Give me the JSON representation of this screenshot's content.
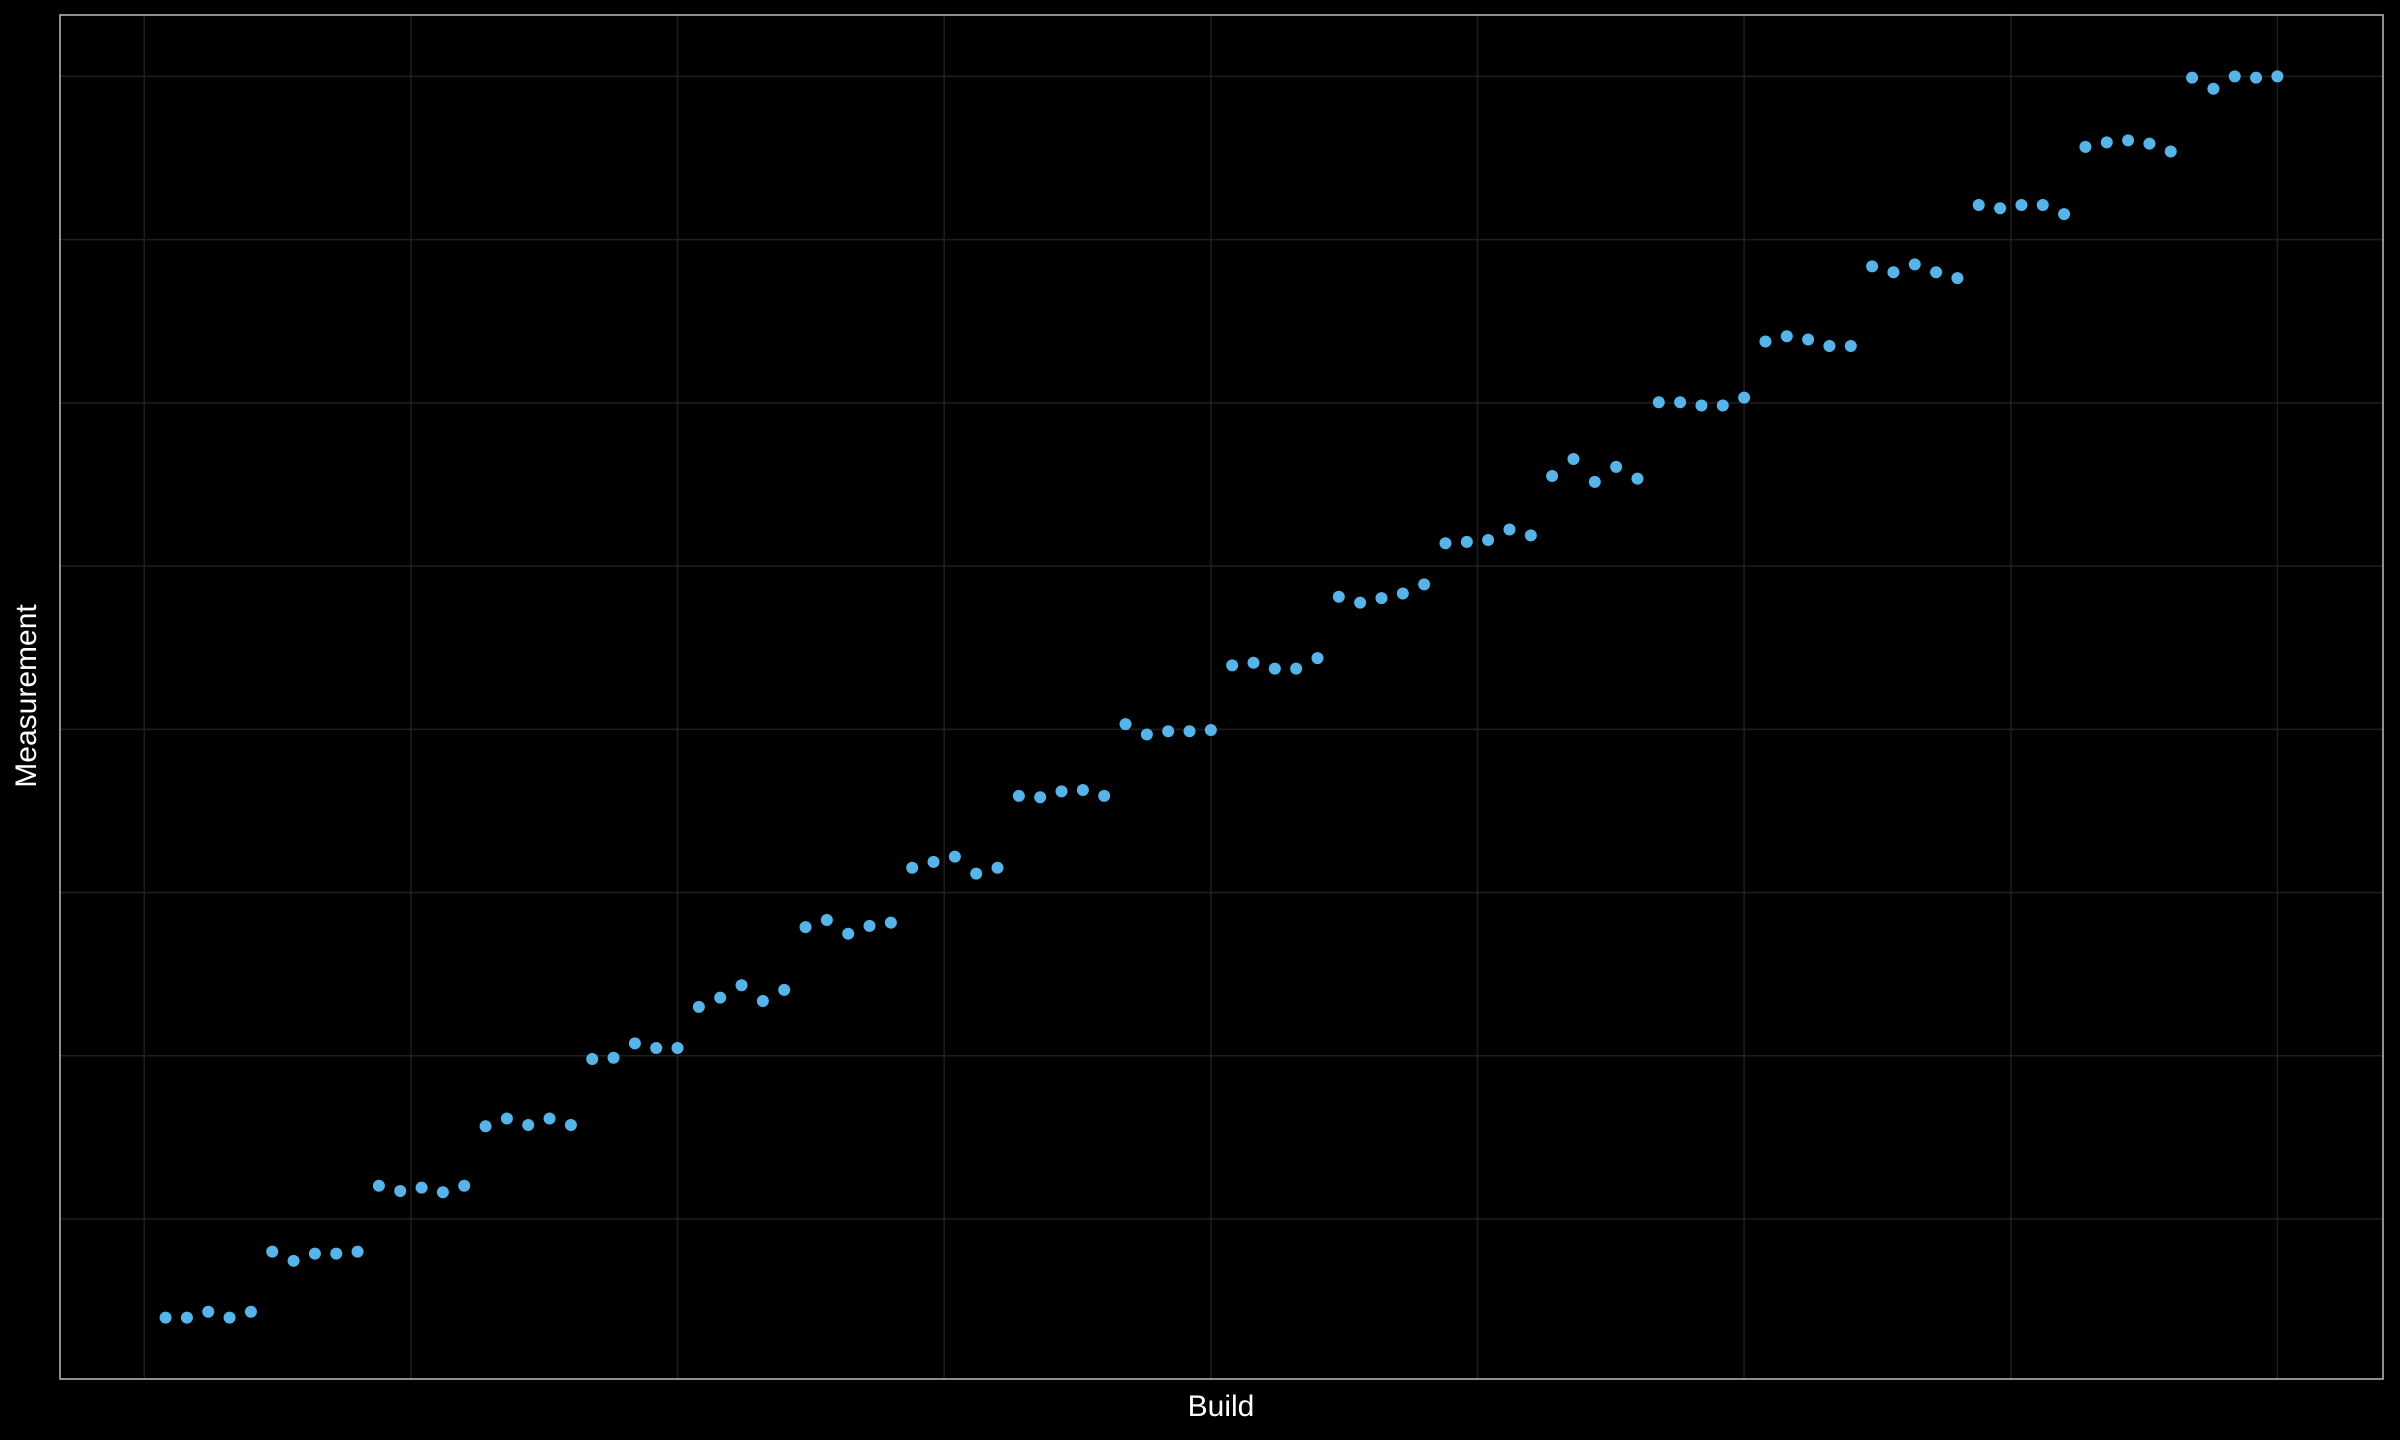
{
  "chart_data": {
    "type": "scatter",
    "x_label": "Build",
    "y_label": "Measurement",
    "color": "#56b4e9",
    "grid": true,
    "tick_labels": false,
    "background": "#000000",
    "xlim": [
      -3.95,
      104.95
    ],
    "ylim": [
      0.05,
      20.94
    ],
    "xticks": [
      0,
      12.5,
      25,
      37.5,
      50,
      62.5,
      75,
      87.5,
      100
    ],
    "yticks": [
      2.5,
      5,
      7.5,
      10,
      12.5,
      15,
      17.5,
      20
    ],
    "x": [
      1,
      2,
      3,
      4,
      5,
      6,
      7,
      8,
      9,
      10,
      11,
      12,
      13,
      14,
      15,
      16,
      17,
      18,
      19,
      20,
      21,
      22,
      23,
      24,
      25,
      26,
      27,
      28,
      29,
      30,
      31,
      32,
      33,
      34,
      35,
      36,
      37,
      38,
      39,
      40,
      41,
      42,
      43,
      44,
      45,
      46,
      47,
      48,
      49,
      50,
      51,
      52,
      53,
      54,
      55,
      56,
      57,
      58,
      59,
      60,
      61,
      62,
      63,
      64,
      65,
      66,
      67,
      68,
      69,
      70,
      71,
      72,
      73,
      74,
      75,
      76,
      77,
      78,
      79,
      80,
      81,
      82,
      83,
      84,
      85,
      86,
      87,
      88,
      89,
      90,
      91,
      92,
      93,
      94,
      95,
      96,
      97,
      98,
      99,
      100
    ],
    "values": [
      0.99,
      0.99,
      1.08,
      0.99,
      1.08,
      2.0,
      1.86,
      1.97,
      1.97,
      2.0,
      3.01,
      2.93,
      2.98,
      2.91,
      3.01,
      3.92,
      4.04,
      3.94,
      4.04,
      3.94,
      4.95,
      4.97,
      5.19,
      5.12,
      5.12,
      5.75,
      5.89,
      6.08,
      5.84,
      6.01,
      6.97,
      7.08,
      6.87,
      6.99,
      7.04,
      7.88,
      7.97,
      8.05,
      7.79,
      7.88,
      8.98,
      8.96,
      9.05,
      9.07,
      8.98,
      10.08,
      9.92,
      9.97,
      9.97,
      9.99,
      10.98,
      11.02,
      10.93,
      10.93,
      11.09,
      12.03,
      11.94,
      12.01,
      12.08,
      12.22,
      12.85,
      12.87,
      12.9,
      13.06,
      12.97,
      13.88,
      14.14,
      13.79,
      14.02,
      13.84,
      15.01,
      15.01,
      14.96,
      14.96,
      15.08,
      15.94,
      16.02,
      15.97,
      15.87,
      15.87,
      17.09,
      17.0,
      17.12,
      17.0,
      16.91,
      18.03,
      17.98,
      18.03,
      18.03,
      17.89,
      18.92,
      18.99,
      19.02,
      18.97,
      18.85,
      19.98,
      19.81,
      20.0,
      19.98,
      20.0
    ]
  }
}
